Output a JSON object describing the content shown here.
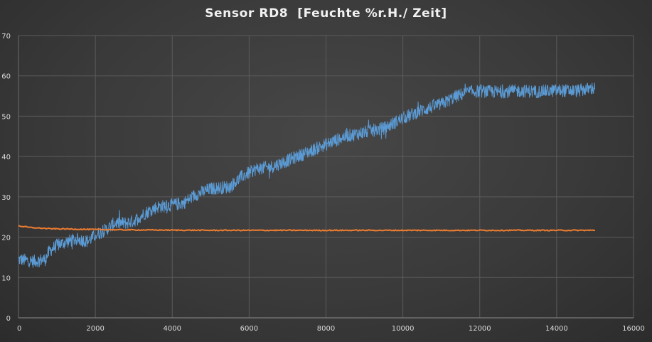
{
  "chart_data": {
    "type": "line",
    "title": "Sensor RD8  [Feuchte %r.H./ Zeit]",
    "xlabel": "",
    "ylabel": "",
    "xlim": [
      0,
      16000
    ],
    "ylim": [
      0,
      70
    ],
    "x_ticks": [
      "0",
      "2000",
      "4000",
      "6000",
      "8000",
      "10000",
      "12000",
      "14000",
      "16000"
    ],
    "y_ticks": [
      "0",
      "10",
      "20",
      "30",
      "40",
      "50",
      "60",
      "70"
    ],
    "grid": true,
    "legend": "none",
    "series": [
      {
        "color": "#5b9bd5",
        "x": [
          0,
          400,
          700,
          800,
          1000,
          1300,
          1500,
          1800,
          2000,
          2300,
          2500,
          2800,
          3000,
          3300,
          3600,
          4000,
          4300,
          4600,
          5000,
          5500,
          5800,
          6200,
          6600,
          7000,
          7500,
          8000,
          8500,
          9000,
          9500,
          10000,
          10500,
          11000,
          11400,
          11700,
          12000,
          12500,
          13000,
          13500,
          14000,
          14500,
          15000
        ],
        "y": [
          14.5,
          14,
          14.5,
          16.5,
          18,
          19,
          19.5,
          19,
          20.5,
          22,
          23.5,
          23.5,
          24,
          26,
          27.5,
          28,
          28.5,
          30.5,
          32,
          32.5,
          35,
          37,
          37.5,
          39,
          41,
          43,
          45,
          46,
          47,
          49.5,
          51.5,
          53,
          55,
          56,
          56.2,
          56,
          56.3,
          56.1,
          56.4,
          56.3,
          57
        ]
      },
      {
        "color": "#ed7d31",
        "x": [
          0,
          300,
          800,
          1500,
          2000,
          3000,
          5000,
          8000,
          11000,
          13000,
          15000
        ],
        "y": [
          22.8,
          22.4,
          22.1,
          22,
          21.9,
          21.8,
          21.7,
          21.7,
          21.7,
          21.7,
          21.7
        ]
      }
    ]
  }
}
